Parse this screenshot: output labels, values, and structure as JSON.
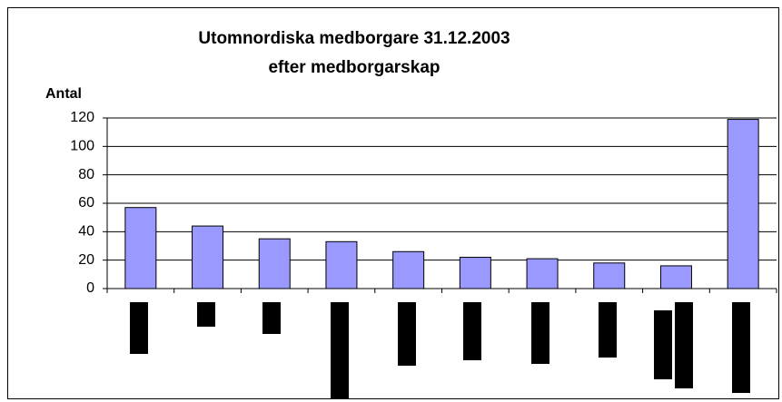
{
  "chart_data": {
    "type": "bar",
    "title": "Utomnordiska medborgare 31.12.2003",
    "subtitle": "efter medborgarskap",
    "y_label": "Antal",
    "categories": [
      null,
      null,
      null,
      null,
      null,
      null,
      null,
      null,
      null,
      null
    ],
    "values": [
      57,
      44,
      35,
      33,
      26,
      22,
      21,
      18,
      16,
      119
    ],
    "color": "#9999ff",
    "ylim": [
      0,
      120
    ],
    "yticks": [
      0,
      20,
      40,
      60,
      80,
      100,
      120
    ],
    "grid": true
  }
}
